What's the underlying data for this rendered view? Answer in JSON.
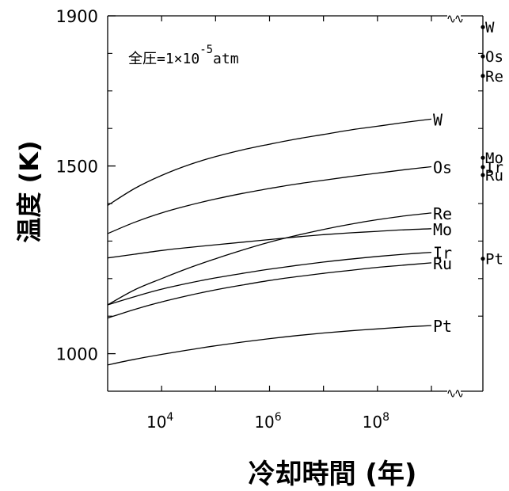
{
  "chart_data": {
    "type": "line",
    "title": "",
    "annotation": {
      "prefix": "全圧=1×10",
      "exponent": "-5",
      "suffix": "atm"
    },
    "xlabel": "冷却時間 (年)",
    "ylabel": "温度 (K)",
    "x_scale": "log",
    "xlim": [
      1000,
      3000000000
    ],
    "ylim": [
      900,
      1900
    ],
    "x_ticks": [
      {
        "value": 10000,
        "base": "10",
        "exp": "4"
      },
      {
        "value": 1000000,
        "base": "10",
        "exp": "6"
      },
      {
        "value": 100000000,
        "base": "10",
        "exp": "8"
      }
    ],
    "y_ticks": [
      {
        "value": 1000,
        "label": "1000"
      },
      {
        "value": 1500,
        "label": "1500"
      },
      {
        "value": 1900,
        "label": "1900"
      }
    ],
    "grid": false,
    "x": [
      1000,
      3162,
      10000,
      31623,
      100000,
      316228,
      1000000,
      3162278,
      10000000,
      31622777,
      100000000,
      316227766,
      1000000000
    ],
    "series": [
      {
        "name": "W",
        "values": [
          1395,
          1440,
          1475,
          1503,
          1525,
          1543,
          1558,
          1572,
          1584,
          1596,
          1606,
          1616,
          1625
        ]
      },
      {
        "name": "Os",
        "values": [
          1320,
          1350,
          1375,
          1395,
          1412,
          1427,
          1440,
          1452,
          1462,
          1472,
          1481,
          1490,
          1498
        ]
      },
      {
        "name": "Re",
        "values": [
          1130,
          1170,
          1200,
          1228,
          1253,
          1276,
          1297,
          1315,
          1331,
          1345,
          1357,
          1367,
          1375
        ]
      },
      {
        "name": "Mo",
        "values": [
          1255,
          1265,
          1275,
          1283,
          1290,
          1297,
          1304,
          1311,
          1317,
          1322,
          1326,
          1330,
          1333
        ]
      },
      {
        "name": "Ir",
        "values": [
          1130,
          1152,
          1172,
          1188,
          1202,
          1214,
          1225,
          1235,
          1244,
          1252,
          1259,
          1265,
          1270
        ]
      },
      {
        "name": "Ru",
        "values": [
          1095,
          1118,
          1138,
          1155,
          1170,
          1183,
          1195,
          1205,
          1214,
          1222,
          1230,
          1236,
          1242
        ]
      },
      {
        "name": "Pt",
        "values": [
          970,
          985,
          998,
          1010,
          1021,
          1031,
          1040,
          1048,
          1055,
          1061,
          1066,
          1071,
          1075
        ]
      }
    ],
    "condensation_markers": [
      {
        "name": "W",
        "value": 1870
      },
      {
        "name": "Os",
        "value": 1792
      },
      {
        "name": "Re",
        "value": 1740
      },
      {
        "name": "Mo",
        "value": 1522
      },
      {
        "name": "Ir",
        "value": 1497
      },
      {
        "name": "Ru",
        "value": 1476
      },
      {
        "name": "Pt",
        "value": 1253
      }
    ]
  }
}
